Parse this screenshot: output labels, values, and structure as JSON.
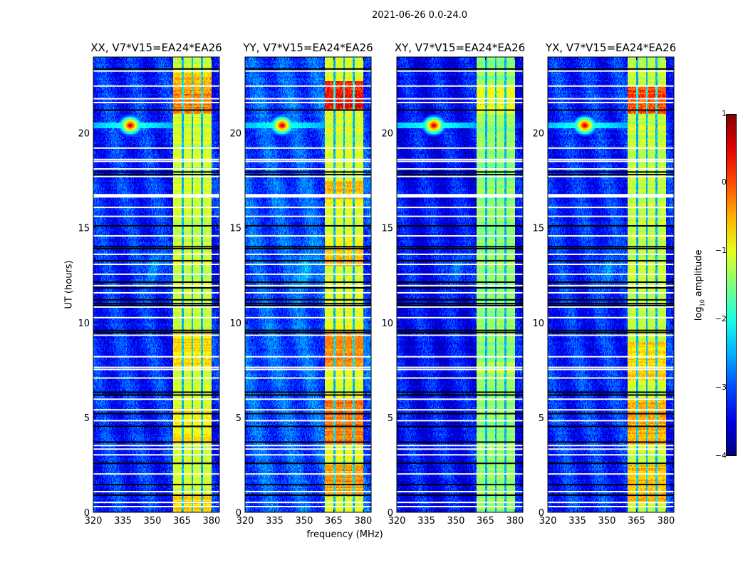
{
  "suptitle": "2021-06-26 0.0-24.0",
  "chart_data": {
    "type": "heatmap",
    "title": "2021-06-26 0.0-24.0",
    "xlabel": "frequency (MHz)",
    "ylabel": "UT (hours)",
    "xlim": [
      320,
      384
    ],
    "ylim": [
      0,
      24
    ],
    "xticks": [
      320,
      335,
      350,
      365,
      380
    ],
    "yticks": [
      0,
      5,
      10,
      15,
      20
    ],
    "colorbar": {
      "label_main": "log",
      "label_sub": "10",
      "label_rest": " amplitude",
      "colormap": "jet",
      "range": [
        -4,
        1
      ],
      "ticks": [
        1,
        0,
        -1,
        -2,
        -3,
        -4
      ]
    },
    "sub_bands_mhz": [
      [
        360.5,
        364.8
      ],
      [
        365.9,
        369.9
      ],
      [
        370.6,
        374.6
      ],
      [
        375.7,
        380.0
      ]
    ],
    "flagged_white_ut": [
      23.26,
      22.47,
      21.8,
      21.6,
      19.2,
      18.6,
      18.5,
      18.1,
      17.7,
      16.74,
      16.07,
      15.6,
      14.57,
      13.6,
      13.07,
      12.55,
      11.95,
      11.57,
      10.82,
      10.26,
      9.33,
      8.2,
      7.64,
      7.53,
      7.08,
      5.96,
      5.4,
      4.83,
      3.52,
      3.33,
      3.03,
      2.02,
      1.09,
      0.52,
      0.3
    ],
    "flagged_black_ut": [
      23.37,
      21.2,
      17.94,
      17.8,
      15.1,
      14.0,
      13.9,
      13.26,
      12.13,
      11.83,
      11.2,
      11.0,
      10.9,
      9.59,
      9.48,
      6.33,
      6.18,
      5.2,
      4.53,
      3.7,
      2.58,
      1.46,
      0.9
    ],
    "rfi_spot": {
      "freq_mhz": 338.8,
      "ut": 20.4,
      "peak_log_amp": 0.8
    },
    "panels": [
      {
        "title": "XX, V7*V15=EA24*EA26",
        "background_log_amp": -3.2,
        "band_log_amp": -1.1,
        "hot_intervals": [
          [
            21.0,
            22.3,
            0.9
          ],
          [
            22.3,
            23.2,
            0.6
          ],
          [
            7.5,
            9.5,
            0.4
          ],
          [
            0.0,
            1.0,
            0.4
          ],
          [
            3.5,
            5.5,
            0.3
          ]
        ]
      },
      {
        "title": "YY, V7*V15=EA24*EA26",
        "background_log_amp": -3.0,
        "band_log_amp": -1.0,
        "hot_intervals": [
          [
            21.2,
            22.7,
            1.4
          ],
          [
            3.5,
            6.0,
            0.8
          ],
          [
            7.5,
            9.5,
            0.7
          ],
          [
            0.8,
            2.5,
            0.6
          ],
          [
            16.5,
            17.5,
            0.5
          ],
          [
            13.0,
            14.0,
            0.5
          ]
        ]
      },
      {
        "title": "XY, V7*V15=EA24*EA26",
        "background_log_amp": -3.35,
        "band_log_amp": -1.4,
        "hot_intervals": [
          [
            21.0,
            22.5,
            0.5
          ],
          [
            7.0,
            8.0,
            0.2
          ]
        ]
      },
      {
        "title": "YX, V7*V15=EA24*EA26",
        "background_log_amp": -3.2,
        "band_log_amp": -1.15,
        "hot_intervals": [
          [
            21.0,
            22.5,
            1.2
          ],
          [
            3.5,
            6.0,
            0.7
          ],
          [
            0.5,
            2.5,
            0.6
          ],
          [
            7.0,
            9.0,
            0.5
          ]
        ]
      }
    ]
  }
}
